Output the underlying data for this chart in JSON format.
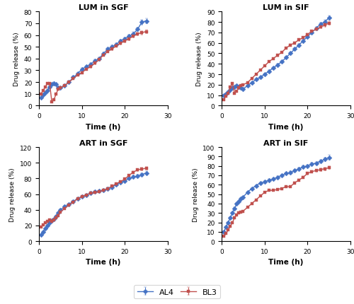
{
  "lum_sgf": {
    "title": "LUM in SGF",
    "ylabel": "Drug release (%)",
    "xlabel": "Time (h)",
    "xlim": [
      0,
      30
    ],
    "ylim": [
      0,
      80
    ],
    "yticks": [
      0,
      10,
      20,
      30,
      40,
      50,
      60,
      70,
      80
    ],
    "xticks": [
      0,
      10,
      20,
      30
    ],
    "AL4_x": [
      0.5,
      1,
      1.5,
      2,
      2.5,
      3,
      3.5,
      4,
      4.5,
      5,
      6,
      7,
      8,
      9,
      10,
      11,
      12,
      13,
      14,
      15,
      16,
      17,
      18,
      19,
      20,
      21,
      22,
      23,
      24,
      25
    ],
    "AL4_y": [
      7,
      9,
      11,
      13,
      16,
      18,
      19,
      18,
      15,
      15,
      17,
      20,
      24,
      27,
      31,
      33,
      35,
      38,
      40,
      44,
      48,
      50,
      52,
      55,
      57,
      59,
      61,
      65,
      71,
      72
    ],
    "AL4_err": [
      0.5,
      0.5,
      0.5,
      0.5,
      0.8,
      0.8,
      0.8,
      0.8,
      0.8,
      0.8,
      0.8,
      0.8,
      0.8,
      0.8,
      1.0,
      1.0,
      1.0,
      1.0,
      1.0,
      1.0,
      1.2,
      1.2,
      1.2,
      1.2,
      1.2,
      1.5,
      1.5,
      1.5,
      2.0,
      2.0
    ],
    "BL3_x": [
      0.5,
      1,
      1.5,
      2,
      2.5,
      3,
      3.5,
      4,
      4.5,
      5,
      6,
      7,
      8,
      9,
      10,
      11,
      12,
      13,
      14,
      15,
      16,
      17,
      18,
      19,
      20,
      21,
      22,
      23,
      24,
      25
    ],
    "BL3_y": [
      10,
      13,
      16,
      19,
      19,
      3,
      5,
      10,
      14,
      15,
      17,
      20,
      23,
      26,
      28,
      31,
      33,
      36,
      39,
      43,
      46,
      48,
      51,
      53,
      55,
      57,
      59,
      61,
      62,
      63
    ],
    "BL3_err": [
      0.5,
      0.5,
      0.5,
      0.5,
      0.5,
      0.5,
      0.5,
      0.5,
      0.5,
      0.5,
      0.5,
      0.5,
      0.5,
      0.5,
      0.8,
      0.8,
      0.8,
      0.8,
      0.8,
      1.0,
      1.0,
      1.0,
      1.0,
      1.0,
      1.2,
      1.2,
      1.2,
      1.2,
      1.5,
      1.5
    ]
  },
  "lum_sif": {
    "title": "LUM in SIF",
    "ylabel": "Drug release (%)",
    "xlabel": "Time (h)",
    "xlim": [
      0,
      30
    ],
    "ylim": [
      0,
      90
    ],
    "yticks": [
      0,
      10,
      20,
      30,
      40,
      50,
      60,
      70,
      80,
      90
    ],
    "xticks": [
      0,
      10,
      20,
      30
    ],
    "AL4_x": [
      0.5,
      1,
      1.5,
      2,
      2.5,
      3,
      3.5,
      4,
      4.5,
      5,
      6,
      7,
      8,
      9,
      10,
      11,
      12,
      13,
      14,
      15,
      16,
      17,
      18,
      19,
      20,
      21,
      22,
      23,
      24,
      25
    ],
    "AL4_y": [
      10,
      11,
      13,
      15,
      17,
      18,
      19,
      18,
      17,
      16,
      19,
      22,
      25,
      27,
      30,
      33,
      36,
      39,
      42,
      46,
      50,
      54,
      58,
      62,
      66,
      70,
      74,
      78,
      80,
      84
    ],
    "AL4_err": [
      0.5,
      0.5,
      0.5,
      0.5,
      0.8,
      0.8,
      0.8,
      0.8,
      0.8,
      0.8,
      0.8,
      0.8,
      0.8,
      0.8,
      1.0,
      1.0,
      1.0,
      1.0,
      1.0,
      1.0,
      1.2,
      1.2,
      1.2,
      1.2,
      1.2,
      1.5,
      1.5,
      1.5,
      2.0,
      2.0
    ],
    "BL3_x": [
      0.5,
      1,
      1.5,
      2,
      2.5,
      3,
      3.5,
      4,
      4.5,
      5,
      6,
      7,
      8,
      9,
      10,
      11,
      12,
      13,
      14,
      15,
      16,
      17,
      18,
      19,
      20,
      21,
      22,
      23,
      24,
      25
    ],
    "BL3_y": [
      6,
      9,
      12,
      18,
      21,
      12,
      14,
      17,
      19,
      20,
      22,
      26,
      30,
      34,
      38,
      42,
      45,
      48,
      51,
      55,
      58,
      60,
      63,
      65,
      68,
      71,
      73,
      75,
      77,
      79
    ],
    "BL3_err": [
      0.5,
      0.5,
      0.5,
      0.5,
      0.5,
      0.5,
      0.5,
      0.5,
      0.5,
      0.5,
      0.5,
      0.5,
      0.5,
      0.5,
      0.8,
      0.8,
      0.8,
      0.8,
      0.8,
      1.0,
      1.0,
      1.0,
      1.0,
      1.0,
      1.2,
      1.2,
      1.2,
      1.2,
      1.5,
      1.5
    ]
  },
  "art_sgf": {
    "title": "ART in SGF",
    "ylabel": "Drug release (%)",
    "xlabel": "Time (h)",
    "xlim": [
      0,
      30
    ],
    "ylim": [
      0,
      120
    ],
    "yticks": [
      0,
      20,
      40,
      60,
      80,
      100,
      120
    ],
    "xticks": [
      0,
      10,
      20,
      30
    ],
    "AL4_x": [
      0.5,
      1,
      1.5,
      2,
      2.5,
      3,
      3.5,
      4,
      4.5,
      5,
      6,
      7,
      8,
      9,
      10,
      11,
      12,
      13,
      14,
      15,
      16,
      17,
      18,
      19,
      20,
      21,
      22,
      23,
      24,
      25
    ],
    "AL4_y": [
      8,
      12,
      16,
      20,
      24,
      26,
      28,
      32,
      36,
      40,
      44,
      47,
      51,
      54,
      57,
      59,
      61,
      63,
      64,
      65,
      67,
      69,
      72,
      75,
      77,
      80,
      82,
      83,
      85,
      87
    ],
    "AL4_err": [
      0.5,
      0.5,
      0.5,
      0.5,
      0.8,
      0.8,
      0.8,
      0.8,
      0.8,
      0.8,
      0.8,
      0.8,
      0.8,
      0.8,
      1.0,
      1.0,
      1.0,
      1.0,
      1.0,
      1.0,
      1.2,
      1.2,
      1.2,
      1.2,
      1.2,
      1.5,
      1.5,
      1.5,
      2.0,
      2.0
    ],
    "BL3_x": [
      0.5,
      1,
      1.5,
      2,
      2.5,
      3,
      3.5,
      4,
      4.5,
      5,
      6,
      7,
      8,
      9,
      10,
      11,
      12,
      13,
      14,
      15,
      16,
      17,
      18,
      19,
      20,
      21,
      22,
      23,
      24,
      25
    ],
    "BL3_y": [
      18,
      21,
      24,
      25,
      27,
      25,
      27,
      30,
      33,
      37,
      42,
      46,
      50,
      54,
      57,
      59,
      61,
      62,
      63,
      65,
      67,
      70,
      73,
      76,
      79,
      84,
      88,
      91,
      92,
      93
    ],
    "BL3_err": [
      0.5,
      0.5,
      0.5,
      0.5,
      0.5,
      0.5,
      0.5,
      0.5,
      0.5,
      0.5,
      0.5,
      0.5,
      0.5,
      0.5,
      0.8,
      0.8,
      0.8,
      0.8,
      0.8,
      1.0,
      1.0,
      1.0,
      1.0,
      1.0,
      1.2,
      1.2,
      1.2,
      1.2,
      1.5,
      1.5
    ]
  },
  "art_sif": {
    "title": "ART in SIF",
    "ylabel": "Drug release (%)",
    "xlabel": "Time (h)",
    "xlim": [
      0,
      30
    ],
    "ylim": [
      0,
      100
    ],
    "yticks": [
      0,
      10,
      20,
      30,
      40,
      50,
      60,
      70,
      80,
      90,
      100
    ],
    "xticks": [
      0,
      10,
      20,
      30
    ],
    "AL4_x": [
      0.5,
      1,
      1.5,
      2,
      2.5,
      3,
      3.5,
      4,
      4.5,
      5,
      6,
      7,
      8,
      9,
      10,
      11,
      12,
      13,
      14,
      15,
      16,
      17,
      18,
      19,
      20,
      21,
      22,
      23,
      24,
      25
    ],
    "AL4_y": [
      10,
      15,
      20,
      25,
      30,
      35,
      40,
      42,
      45,
      47,
      52,
      56,
      59,
      62,
      63,
      65,
      66,
      68,
      70,
      72,
      73,
      75,
      77,
      79,
      80,
      82,
      83,
      85,
      87,
      89
    ],
    "AL4_err": [
      0.5,
      0.5,
      0.5,
      0.5,
      0.8,
      0.8,
      0.8,
      0.8,
      0.8,
      0.8,
      0.8,
      0.8,
      0.8,
      0.8,
      1.0,
      1.0,
      1.0,
      1.0,
      1.0,
      1.0,
      1.2,
      1.2,
      1.2,
      1.2,
      1.2,
      1.5,
      1.5,
      1.5,
      2.0,
      2.5
    ],
    "BL3_x": [
      0.5,
      1,
      1.5,
      2,
      2.5,
      3,
      3.5,
      4,
      4.5,
      5,
      6,
      7,
      8,
      9,
      10,
      11,
      12,
      13,
      14,
      15,
      16,
      17,
      18,
      19,
      20,
      21,
      22,
      23,
      24,
      25
    ],
    "BL3_y": [
      5,
      8,
      12,
      16,
      20,
      25,
      28,
      30,
      31,
      32,
      36,
      40,
      44,
      48,
      52,
      54,
      54,
      55,
      56,
      58,
      58,
      62,
      65,
      68,
      72,
      74,
      75,
      76,
      77,
      78
    ],
    "BL3_err": [
      0.5,
      0.5,
      0.5,
      0.5,
      0.5,
      0.5,
      0.5,
      0.5,
      0.5,
      0.5,
      0.5,
      0.5,
      0.5,
      0.5,
      0.8,
      0.8,
      0.8,
      0.8,
      0.8,
      1.0,
      1.0,
      1.0,
      1.0,
      1.0,
      1.2,
      1.2,
      1.2,
      1.2,
      1.5,
      1.5
    ]
  },
  "AL4_color": "#4472C4",
  "BL3_color": "#C0504D",
  "AL4_marker": "D",
  "BL3_marker": "s",
  "line_width": 1.0,
  "marker_size": 3.5,
  "legend_AL4": "AL4",
  "legend_BL3": "BL3"
}
